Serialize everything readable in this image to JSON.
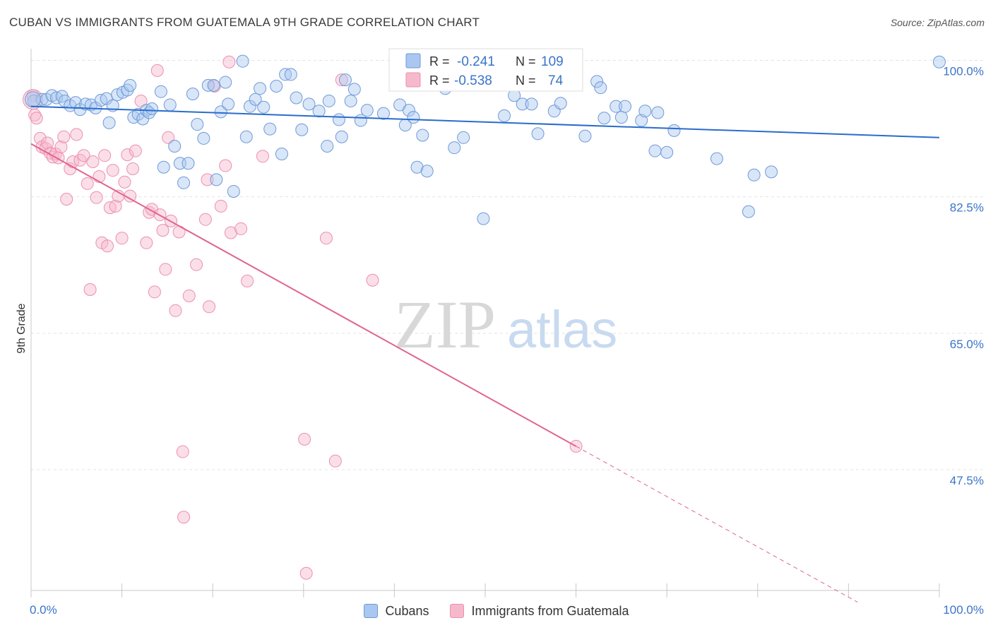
{
  "header": {
    "title": "CUBAN VS IMMIGRANTS FROM GUATEMALA 9TH GRADE CORRELATION CHART",
    "source": "Source: ZipAtlas.com"
  },
  "watermark": {
    "zip": "ZIP",
    "atlas": "atlas"
  },
  "colors": {
    "cubans_fill": "#a9c7f0",
    "cubans_stroke": "#6f9ad8",
    "cubans_line": "#2a6ccc",
    "guatemala_fill": "#f6b9cc",
    "guatemala_stroke": "#ec8fae",
    "guatemala_line": "#e0648f",
    "axis_label": "#3a74c8",
    "grid": "#e3e3e3"
  },
  "legend": {
    "r_label": "R =",
    "n_label": "N =",
    "rows": [
      {
        "series": "Cubans",
        "r": "-0.241",
        "n": "109"
      },
      {
        "series": "Immigrants from Guatemala",
        "r": "-0.538",
        "n": "74"
      }
    ]
  },
  "chart_data": {
    "type": "scatter",
    "title": "CUBAN VS IMMIGRANTS FROM GUATEMALA 9TH GRADE CORRELATION CHART",
    "xlabel": "",
    "ylabel": "9th Grade",
    "xlim": [
      0,
      100
    ],
    "ylim": [
      32,
      101.5
    ],
    "x_tick_labels": [
      "0.0%",
      "100.0%"
    ],
    "y_ticks": [
      {
        "value": 100.0,
        "label": "100.0%"
      },
      {
        "value": 82.5,
        "label": "82.5%"
      },
      {
        "value": 65.0,
        "label": "65.0%"
      },
      {
        "value": 47.5,
        "label": "47.5%"
      }
    ],
    "grid": true,
    "legend_position": "top-center",
    "series": [
      {
        "name": "Cubans",
        "trend": {
          "x": [
            0,
            100
          ],
          "y": [
            94.1,
            90.1
          ]
        },
        "points": [
          [
            0.3,
            94.8
          ],
          [
            1.2,
            95.0
          ],
          [
            1.7,
            95.0
          ],
          [
            2.3,
            95.5
          ],
          [
            2.8,
            95.2
          ],
          [
            3.4,
            95.4
          ],
          [
            3.7,
            94.8
          ],
          [
            4.3,
            94.2
          ],
          [
            4.9,
            94.6
          ],
          [
            5.4,
            93.7
          ],
          [
            6.0,
            94.4
          ],
          [
            6.6,
            94.3
          ],
          [
            7.1,
            93.9
          ],
          [
            7.7,
            94.9
          ],
          [
            8.3,
            95.1
          ],
          [
            8.6,
            92.0
          ],
          [
            9.0,
            94.2
          ],
          [
            9.5,
            95.6
          ],
          [
            10.1,
            95.9
          ],
          [
            10.6,
            96.2
          ],
          [
            10.9,
            96.8
          ],
          [
            11.3,
            92.7
          ],
          [
            11.8,
            93.1
          ],
          [
            12.3,
            92.5
          ],
          [
            12.7,
            93.6
          ],
          [
            13.0,
            93.3
          ],
          [
            13.3,
            93.8
          ],
          [
            14.3,
            96.0
          ],
          [
            14.6,
            86.3
          ],
          [
            15.3,
            94.3
          ],
          [
            15.8,
            89.0
          ],
          [
            16.4,
            86.8
          ],
          [
            16.8,
            84.3
          ],
          [
            17.3,
            86.8
          ],
          [
            17.8,
            95.7
          ],
          [
            18.3,
            91.8
          ],
          [
            19.0,
            90.0
          ],
          [
            19.5,
            96.8
          ],
          [
            20.1,
            96.8
          ],
          [
            20.4,
            84.7
          ],
          [
            20.9,
            93.4
          ],
          [
            21.4,
            97.2
          ],
          [
            21.7,
            94.4
          ],
          [
            22.3,
            83.2
          ],
          [
            23.3,
            99.9
          ],
          [
            23.7,
            90.2
          ],
          [
            24.1,
            94.1
          ],
          [
            24.7,
            95.0
          ],
          [
            25.2,
            96.4
          ],
          [
            25.6,
            94.0
          ],
          [
            26.3,
            91.2
          ],
          [
            27.0,
            96.7
          ],
          [
            27.6,
            88.0
          ],
          [
            28.0,
            98.2
          ],
          [
            28.6,
            98.2
          ],
          [
            29.2,
            95.2
          ],
          [
            29.8,
            91.1
          ],
          [
            30.6,
            94.4
          ],
          [
            31.7,
            93.5
          ],
          [
            32.6,
            89.0
          ],
          [
            32.8,
            94.8
          ],
          [
            33.9,
            92.4
          ],
          [
            34.2,
            90.2
          ],
          [
            34.6,
            97.5
          ],
          [
            35.2,
            94.8
          ],
          [
            35.6,
            96.3
          ],
          [
            36.3,
            92.3
          ],
          [
            37.0,
            93.6
          ],
          [
            38.8,
            93.2
          ],
          [
            40.6,
            94.3
          ],
          [
            41.2,
            91.7
          ],
          [
            41.6,
            93.6
          ],
          [
            42.1,
            92.7
          ],
          [
            42.5,
            86.3
          ],
          [
            43.1,
            90.4
          ],
          [
            43.6,
            85.8
          ],
          [
            45.6,
            96.4
          ],
          [
            46.6,
            88.8
          ],
          [
            47.6,
            90.1
          ],
          [
            49.8,
            79.7
          ],
          [
            52.1,
            92.9
          ],
          [
            53.2,
            95.5
          ],
          [
            54.1,
            94.4
          ],
          [
            55.1,
            94.4
          ],
          [
            55.8,
            90.6
          ],
          [
            57.6,
            93.5
          ],
          [
            58.3,
            94.5
          ],
          [
            61.0,
            90.3
          ],
          [
            62.3,
            97.3
          ],
          [
            62.7,
            96.5
          ],
          [
            63.1,
            92.6
          ],
          [
            64.4,
            94.1
          ],
          [
            65.0,
            92.7
          ],
          [
            65.4,
            94.1
          ],
          [
            67.2,
            92.3
          ],
          [
            67.6,
            93.5
          ],
          [
            68.7,
            88.4
          ],
          [
            69.0,
            93.3
          ],
          [
            70.0,
            88.2
          ],
          [
            70.8,
            91.0
          ],
          [
            75.5,
            87.4
          ],
          [
            79.0,
            80.6
          ],
          [
            79.6,
            85.3
          ],
          [
            81.5,
            85.7
          ],
          [
            100.0,
            99.8
          ]
        ]
      },
      {
        "name": "Immigrants from Guatemala",
        "trend": {
          "x": [
            0,
            60
          ],
          "y": [
            89.3,
            50.5
          ],
          "dashed_extension_to": [
            91.0,
            30.5
          ]
        },
        "points": [
          [
            0.2,
            95.5
          ],
          [
            0.4,
            93.0
          ],
          [
            0.6,
            92.6
          ],
          [
            1.0,
            90.0
          ],
          [
            1.2,
            88.9
          ],
          [
            1.6,
            88.7
          ],
          [
            1.8,
            89.4
          ],
          [
            2.1,
            88.1
          ],
          [
            2.4,
            87.6
          ],
          [
            2.7,
            88.0
          ],
          [
            3.0,
            87.5
          ],
          [
            3.3,
            88.9
          ],
          [
            3.6,
            90.2
          ],
          [
            3.9,
            82.2
          ],
          [
            4.3,
            86.1
          ],
          [
            4.6,
            87.0
          ],
          [
            5.0,
            90.5
          ],
          [
            5.4,
            87.2
          ],
          [
            5.8,
            87.8
          ],
          [
            6.2,
            84.2
          ],
          [
            6.5,
            70.6
          ],
          [
            6.8,
            87.0
          ],
          [
            7.2,
            82.4
          ],
          [
            7.5,
            85.1
          ],
          [
            7.8,
            76.6
          ],
          [
            8.1,
            87.8
          ],
          [
            8.4,
            76.2
          ],
          [
            8.7,
            81.1
          ],
          [
            9.0,
            85.9
          ],
          [
            9.3,
            81.3
          ],
          [
            9.6,
            82.6
          ],
          [
            10.0,
            77.2
          ],
          [
            10.3,
            84.4
          ],
          [
            10.6,
            87.9
          ],
          [
            10.9,
            82.6
          ],
          [
            11.2,
            86.1
          ],
          [
            11.5,
            88.4
          ],
          [
            12.1,
            94.8
          ],
          [
            12.7,
            76.6
          ],
          [
            13.0,
            80.5
          ],
          [
            13.3,
            80.9
          ],
          [
            13.6,
            70.3
          ],
          [
            13.9,
            98.7
          ],
          [
            14.2,
            80.2
          ],
          [
            14.5,
            78.2
          ],
          [
            14.8,
            73.2
          ],
          [
            15.1,
            90.1
          ],
          [
            15.4,
            79.4
          ],
          [
            15.9,
            67.9
          ],
          [
            16.3,
            78.0
          ],
          [
            16.7,
            49.8
          ],
          [
            16.8,
            41.4
          ],
          [
            17.4,
            69.8
          ],
          [
            18.2,
            73.8
          ],
          [
            19.2,
            79.6
          ],
          [
            19.4,
            84.7
          ],
          [
            19.6,
            68.4
          ],
          [
            20.2,
            96.7
          ],
          [
            20.9,
            81.3
          ],
          [
            21.4,
            86.5
          ],
          [
            21.8,
            99.8
          ],
          [
            22.0,
            77.9
          ],
          [
            23.1,
            78.4
          ],
          [
            23.8,
            71.7
          ],
          [
            25.5,
            87.7
          ],
          [
            30.1,
            51.4
          ],
          [
            30.3,
            34.2
          ],
          [
            32.5,
            77.2
          ],
          [
            33.5,
            48.6
          ],
          [
            34.2,
            97.5
          ],
          [
            37.6,
            71.8
          ],
          [
            60.0,
            50.5
          ]
        ]
      }
    ]
  },
  "bottom_legend": [
    {
      "label": "Cubans"
    },
    {
      "label": "Immigrants from Guatemala"
    }
  ]
}
